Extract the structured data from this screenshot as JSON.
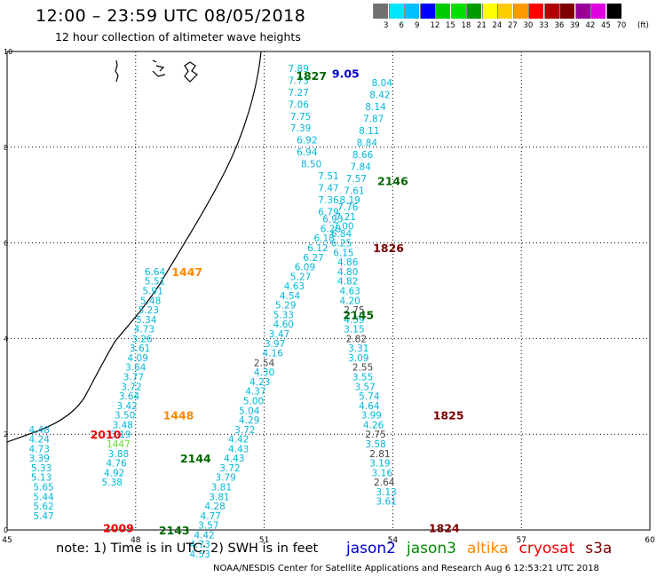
{
  "header": {
    "title": "12:00 – 23:59 UTC 08/05/2018",
    "subtitle": "12 hour collection of altimeter wave heights"
  },
  "color_scale": {
    "labels": [
      "3",
      "6",
      "9",
      "12",
      "15",
      "18",
      "21",
      "24",
      "27",
      "30",
      "33",
      "36",
      "39",
      "42",
      "45",
      "70"
    ],
    "unit": "(ft)",
    "colors": [
      "#707070",
      "#00e5ff",
      "#00bfff",
      "#0000ff",
      "#00cc00",
      "#00e000",
      "#009900",
      "#ffff00",
      "#ffcc00",
      "#ff9900",
      "#ff0000",
      "#b00000",
      "#800000",
      "#990099",
      "#e000e0",
      "#000000"
    ]
  },
  "axes": {
    "x_ticks": [
      "45",
      "48",
      "51",
      "54",
      "57",
      "60"
    ],
    "y_ticks": [
      "0",
      "2",
      "4",
      "6",
      "8",
      "10"
    ]
  },
  "chart_data": {
    "type": "scatter",
    "xlim": [
      45,
      60
    ],
    "ylim": [
      0,
      10
    ],
    "grid": true,
    "series": [
      {
        "name": "jason2",
        "color": "#0000cc",
        "points": [
          {
            "x": 52.9,
            "y": 9.55,
            "t": "9.05"
          }
        ]
      },
      {
        "name": "jason3",
        "color": "#006600",
        "points": [
          {
            "x": 52.1,
            "y": 9.5,
            "t": "1827"
          },
          {
            "x": 54.0,
            "y": 7.3,
            "t": "2146"
          },
          {
            "x": 53.2,
            "y": 4.5,
            "t": "2145"
          },
          {
            "x": 49.4,
            "y": 1.5,
            "t": "2144"
          },
          {
            "x": 48.9,
            "y": 0.0,
            "t": "2143"
          }
        ]
      },
      {
        "name": "altika",
        "color": "#ff8800",
        "points": [
          {
            "x": 49.2,
            "y": 5.4,
            "t": "1447"
          },
          {
            "x": 49.0,
            "y": 2.4,
            "t": "1448"
          }
        ]
      },
      {
        "name": "cryosat",
        "color": "#ee0000",
        "points": [
          {
            "x": 47.3,
            "y": 2.0,
            "t": "2010"
          },
          {
            "x": 47.6,
            "y": 0.05,
            "t": "2009"
          }
        ]
      },
      {
        "name": "s3a",
        "color": "#7a0000",
        "points": [
          {
            "x": 53.9,
            "y": 5.9,
            "t": "1826"
          },
          {
            "x": 55.3,
            "y": 2.4,
            "t": "1825"
          },
          {
            "x": 55.2,
            "y": 0.05,
            "t": "1824"
          }
        ]
      }
    ],
    "track_labels": [
      {
        "t": "7.89",
        "x": 51.8,
        "y": 9.65,
        "c": "#00b8d8"
      },
      {
        "t": "7.73",
        "x": 51.8,
        "y": 9.4,
        "c": "#00b8d8"
      },
      {
        "t": "7.27",
        "x": 51.8,
        "y": 9.15,
        "c": "#00b8d8"
      },
      {
        "t": "7.06",
        "x": 51.8,
        "y": 8.9,
        "c": "#00b8d8"
      },
      {
        "t": "7.75",
        "x": 51.85,
        "y": 8.65,
        "c": "#00b8d8"
      },
      {
        "t": "7.39",
        "x": 51.85,
        "y": 8.4,
        "c": "#00b8d8"
      },
      {
        "t": "6.92",
        "x": 52.0,
        "y": 8.15,
        "c": "#00b8d8"
      },
      {
        "t": "6.94",
        "x": 52.0,
        "y": 7.9,
        "c": "#00b8d8"
      },
      {
        "t": "8.50",
        "x": 52.1,
        "y": 7.65,
        "c": "#00b8d8"
      },
      {
        "t": "7.51",
        "x": 52.5,
        "y": 7.4,
        "c": "#00b8d8"
      },
      {
        "t": "7.47",
        "x": 52.5,
        "y": 7.15,
        "c": "#00b8d8"
      },
      {
        "t": "7.36",
        "x": 52.5,
        "y": 6.9,
        "c": "#00b8d8"
      },
      {
        "t": "6.79",
        "x": 52.5,
        "y": 6.65,
        "c": "#00b8d8"
      },
      {
        "t": "6.93",
        "x": 52.6,
        "y": 6.5,
        "c": "#00b8d8"
      },
      {
        "t": "6.28",
        "x": 52.55,
        "y": 6.3,
        "c": "#00b8d8"
      },
      {
        "t": "6.18",
        "x": 52.4,
        "y": 6.1,
        "c": "#00b8d8"
      },
      {
        "t": "6.12",
        "x": 52.25,
        "y": 5.9,
        "c": "#00b8d8"
      },
      {
        "t": "6.27",
        "x": 52.15,
        "y": 5.7,
        "c": "#00b8d8"
      },
      {
        "t": "6.09",
        "x": 51.95,
        "y": 5.5,
        "c": "#00b8d8"
      },
      {
        "t": "5.27",
        "x": 51.85,
        "y": 5.3,
        "c": "#00b8d8"
      },
      {
        "t": "4.63",
        "x": 51.7,
        "y": 5.1,
        "c": "#00b8d8"
      },
      {
        "t": "4.54",
        "x": 51.6,
        "y": 4.9,
        "c": "#00b8d8"
      },
      {
        "t": "5.29",
        "x": 51.5,
        "y": 4.7,
        "c": "#00b8d8"
      },
      {
        "t": "5.33",
        "x": 51.45,
        "y": 4.5,
        "c": "#00b8d8"
      },
      {
        "t": "4.60",
        "x": 51.45,
        "y": 4.3,
        "c": "#00b8d8"
      },
      {
        "t": "3.47",
        "x": 51.35,
        "y": 4.1,
        "c": "#00b8d8"
      },
      {
        "t": "3.97",
        "x": 51.25,
        "y": 3.9,
        "c": "#00b8d8"
      },
      {
        "t": "4.16",
        "x": 51.2,
        "y": 3.7,
        "c": "#00b8d8"
      },
      {
        "t": "2.54",
        "x": 51.0,
        "y": 3.5,
        "c": "#444444"
      },
      {
        "t": "4.30",
        "x": 51.0,
        "y": 3.3,
        "c": "#00b8d8"
      },
      {
        "t": "4.23",
        "x": 50.9,
        "y": 3.1,
        "c": "#00b8d8"
      },
      {
        "t": "4.37",
        "x": 50.8,
        "y": 2.9,
        "c": "#00b8d8"
      },
      {
        "t": "5.00",
        "x": 50.75,
        "y": 2.7,
        "c": "#00b8d8"
      },
      {
        "t": "5.04",
        "x": 50.65,
        "y": 2.5,
        "c": "#00b8d8"
      },
      {
        "t": "4.29",
        "x": 50.65,
        "y": 2.3,
        "c": "#00b8d8"
      },
      {
        "t": "3.72",
        "x": 50.55,
        "y": 2.1,
        "c": "#00b8d8"
      },
      {
        "t": "4.42",
        "x": 50.4,
        "y": 1.9,
        "c": "#00b8d8"
      },
      {
        "t": "4.43",
        "x": 50.4,
        "y": 1.7,
        "c": "#00b8d8"
      },
      {
        "t": "4.43",
        "x": 50.3,
        "y": 1.5,
        "c": "#00b8d8"
      },
      {
        "t": "3.72",
        "x": 50.2,
        "y": 1.3,
        "c": "#00b8d8"
      },
      {
        "t": "3.79",
        "x": 50.1,
        "y": 1.1,
        "c": "#00b8d8"
      },
      {
        "t": "3.81",
        "x": 50.0,
        "y": 0.9,
        "c": "#00b8d8"
      },
      {
        "t": "3.81",
        "x": 49.95,
        "y": 0.7,
        "c": "#00b8d8"
      },
      {
        "t": "4.28",
        "x": 49.85,
        "y": 0.5,
        "c": "#00b8d8"
      },
      {
        "t": "4.77",
        "x": 49.75,
        "y": 0.3,
        "c": "#00b8d8"
      },
      {
        "t": "3.57",
        "x": 49.7,
        "y": 0.1,
        "c": "#00b8d8"
      },
      {
        "t": "4.42",
        "x": 49.6,
        "y": -0.1,
        "c": "#00b8d8"
      },
      {
        "t": "4.73",
        "x": 49.5,
        "y": -0.3,
        "c": "#00b8d8"
      },
      {
        "t": "4.53",
        "x": 49.5,
        "y": -0.5,
        "c": "#00b8d8"
      },
      {
        "t": "8.04",
        "x": 53.75,
        "y": 9.35,
        "c": "#00b8d8"
      },
      {
        "t": "8.42",
        "x": 53.7,
        "y": 9.1,
        "c": "#00b8d8"
      },
      {
        "t": "8.14",
        "x": 53.6,
        "y": 8.85,
        "c": "#00b8d8"
      },
      {
        "t": "7.87",
        "x": 53.55,
        "y": 8.6,
        "c": "#00b8d8"
      },
      {
        "t": "8.11",
        "x": 53.45,
        "y": 8.35,
        "c": "#00b8d8"
      },
      {
        "t": "8.84",
        "x": 53.4,
        "y": 8.1,
        "c": "#00b8d8"
      },
      {
        "t": "8.66",
        "x": 53.3,
        "y": 7.85,
        "c": "#00b8d8"
      },
      {
        "t": "7.84",
        "x": 53.25,
        "y": 7.6,
        "c": "#00b8d8"
      },
      {
        "t": "7.57",
        "x": 53.15,
        "y": 7.35,
        "c": "#00b8d8"
      },
      {
        "t": "7.61",
        "x": 53.1,
        "y": 7.1,
        "c": "#00b8d8"
      },
      {
        "t": "8.19",
        "x": 53.0,
        "y": 6.9,
        "c": "#00b8d8"
      },
      {
        "t": "7.76",
        "x": 52.95,
        "y": 6.75,
        "c": "#00b8d8"
      },
      {
        "t": "7.21",
        "x": 52.9,
        "y": 6.55,
        "c": "#00b8d8"
      },
      {
        "t": "7.00",
        "x": 52.85,
        "y": 6.35,
        "c": "#00b8d8"
      },
      {
        "t": "6.84",
        "x": 52.8,
        "y": 6.2,
        "c": "#00b8d8"
      },
      {
        "t": "6.25",
        "x": 52.8,
        "y": 6.0,
        "c": "#00b8d8"
      },
      {
        "t": "6.15",
        "x": 52.85,
        "y": 5.8,
        "c": "#00b8d8"
      },
      {
        "t": "4.86",
        "x": 52.95,
        "y": 5.6,
        "c": "#00b8d8"
      },
      {
        "t": "4.80",
        "x": 52.95,
        "y": 5.4,
        "c": "#00b8d8"
      },
      {
        "t": "4.82",
        "x": 52.95,
        "y": 5.2,
        "c": "#00b8d8"
      },
      {
        "t": "4.63",
        "x": 53.0,
        "y": 5.0,
        "c": "#00b8d8"
      },
      {
        "t": "4.20",
        "x": 53.0,
        "y": 4.8,
        "c": "#00b8d8"
      },
      {
        "t": "2.75",
        "x": 53.1,
        "y": 4.6,
        "c": "#444444"
      },
      {
        "t": "4.59",
        "x": 53.1,
        "y": 4.4,
        "c": "#00b8d8"
      },
      {
        "t": "3.15",
        "x": 53.1,
        "y": 4.2,
        "c": "#00b8d8"
      },
      {
        "t": "2.82",
        "x": 53.15,
        "y": 4.0,
        "c": "#444444"
      },
      {
        "t": "3.31",
        "x": 53.2,
        "y": 3.8,
        "c": "#00b8d8"
      },
      {
        "t": "3.09",
        "x": 53.2,
        "y": 3.6,
        "c": "#00b8d8"
      },
      {
        "t": "2.55",
        "x": 53.3,
        "y": 3.4,
        "c": "#444444"
      },
      {
        "t": "3.55",
        "x": 53.3,
        "y": 3.2,
        "c": "#00b8d8"
      },
      {
        "t": "3.57",
        "x": 53.35,
        "y": 3.0,
        "c": "#00b8d8"
      },
      {
        "t": "5.74",
        "x": 53.45,
        "y": 2.8,
        "c": "#00b8d8"
      },
      {
        "t": "4.64",
        "x": 53.45,
        "y": 2.6,
        "c": "#00b8d8"
      },
      {
        "t": "3.99",
        "x": 53.5,
        "y": 2.4,
        "c": "#00b8d8"
      },
      {
        "t": "4.26",
        "x": 53.55,
        "y": 2.2,
        "c": "#00b8d8"
      },
      {
        "t": "2.75",
        "x": 53.6,
        "y": 2.0,
        "c": "#444444"
      },
      {
        "t": "3.58",
        "x": 53.6,
        "y": 1.8,
        "c": "#00b8d8"
      },
      {
        "t": "2.81",
        "x": 53.7,
        "y": 1.6,
        "c": "#444444"
      },
      {
        "t": "3.19",
        "x": 53.7,
        "y": 1.4,
        "c": "#00b8d8"
      },
      {
        "t": "3.16",
        "x": 53.75,
        "y": 1.2,
        "c": "#00b8d8"
      },
      {
        "t": "2.64",
        "x": 53.8,
        "y": 1.0,
        "c": "#444444"
      },
      {
        "t": "3.13",
        "x": 53.85,
        "y": 0.8,
        "c": "#00b8d8"
      },
      {
        "t": "3.61",
        "x": 53.85,
        "y": 0.6,
        "c": "#00b8d8"
      },
      {
        "t": "6.64",
        "x": 48.45,
        "y": 5.4,
        "c": "#00b8d8"
      },
      {
        "t": "5.51",
        "x": 48.45,
        "y": 5.2,
        "c": "#00b8d8"
      },
      {
        "t": "5.91",
        "x": 48.4,
        "y": 5.0,
        "c": "#00b8d8"
      },
      {
        "t": "5.48",
        "x": 48.35,
        "y": 4.8,
        "c": "#00b8d8"
      },
      {
        "t": "5.23",
        "x": 48.3,
        "y": 4.6,
        "c": "#00b8d8"
      },
      {
        "t": "5.34",
        "x": 48.25,
        "y": 4.4,
        "c": "#00b8d8"
      },
      {
        "t": "4.73",
        "x": 48.2,
        "y": 4.2,
        "c": "#00b8d8"
      },
      {
        "t": "3.26",
        "x": 48.15,
        "y": 4.0,
        "c": "#00b8d8"
      },
      {
        "t": "3.61",
        "x": 48.1,
        "y": 3.8,
        "c": "#00b8d8"
      },
      {
        "t": "4.09",
        "x": 48.05,
        "y": 3.6,
        "c": "#00b8d8"
      },
      {
        "t": "3.64",
        "x": 48.0,
        "y": 3.4,
        "c": "#00b8d8"
      },
      {
        "t": "3.77",
        "x": 47.95,
        "y": 3.2,
        "c": "#00b8d8"
      },
      {
        "t": "3.72",
        "x": 47.9,
        "y": 3.0,
        "c": "#00b8d8"
      },
      {
        "t": "3.64",
        "x": 47.85,
        "y": 2.8,
        "c": "#00b8d8"
      },
      {
        "t": "3.42",
        "x": 47.8,
        "y": 2.6,
        "c": "#00b8d8"
      },
      {
        "t": "3.50",
        "x": 47.75,
        "y": 2.4,
        "c": "#00b8d8"
      },
      {
        "t": "3.48",
        "x": 47.7,
        "y": 2.2,
        "c": "#00b8d8"
      },
      {
        "t": "3.19",
        "x": 47.65,
        "y": 2.0,
        "c": "#00b8d8"
      },
      {
        "t": "1447",
        "x": 47.6,
        "y": 1.8,
        "c": "#66dd33"
      },
      {
        "t": "3.88",
        "x": 47.6,
        "y": 1.6,
        "c": "#00b8d8"
      },
      {
        "t": "4.76",
        "x": 47.55,
        "y": 1.4,
        "c": "#00b8d8"
      },
      {
        "t": "4.92",
        "x": 47.5,
        "y": 1.2,
        "c": "#00b8d8"
      },
      {
        "t": "5.38",
        "x": 47.45,
        "y": 1.0,
        "c": "#00b8d8"
      },
      {
        "t": "4.48",
        "x": 45.75,
        "y": 2.1,
        "c": "#00b8d8"
      },
      {
        "t": "4.24",
        "x": 45.75,
        "y": 1.9,
        "c": "#00b8d8"
      },
      {
        "t": "4.73",
        "x": 45.75,
        "y": 1.7,
        "c": "#00b8d8"
      },
      {
        "t": "3.39",
        "x": 45.75,
        "y": 1.5,
        "c": "#00b8d8"
      },
      {
        "t": "5.33",
        "x": 45.8,
        "y": 1.3,
        "c": "#00b8d8"
      },
      {
        "t": "5.13",
        "x": 45.8,
        "y": 1.1,
        "c": "#00b8d8"
      },
      {
        "t": "5.65",
        "x": 45.85,
        "y": 0.9,
        "c": "#00b8d8"
      },
      {
        "t": "5.44",
        "x": 45.85,
        "y": 0.7,
        "c": "#00b8d8"
      },
      {
        "t": "5.62",
        "x": 45.85,
        "y": 0.5,
        "c": "#00b8d8"
      },
      {
        "t": "5.47",
        "x": 45.85,
        "y": 0.3,
        "c": "#00b8d8"
      }
    ]
  },
  "footer": {
    "note": "note: 1) Time is in UTC; 2) SWH is in feet",
    "credit": "NOAA/NESDIS Center for Satellite Applications and Research   Aug  6 12:53:21 UTC 2018",
    "legend": [
      {
        "label": "jason2",
        "color": "#0000cc"
      },
      {
        "label": "jason3",
        "color": "#008800"
      },
      {
        "label": "altika",
        "color": "#ff8800"
      },
      {
        "label": "cryosat",
        "color": "#ee0000"
      },
      {
        "label": "s3a",
        "color": "#7a0000"
      }
    ]
  }
}
